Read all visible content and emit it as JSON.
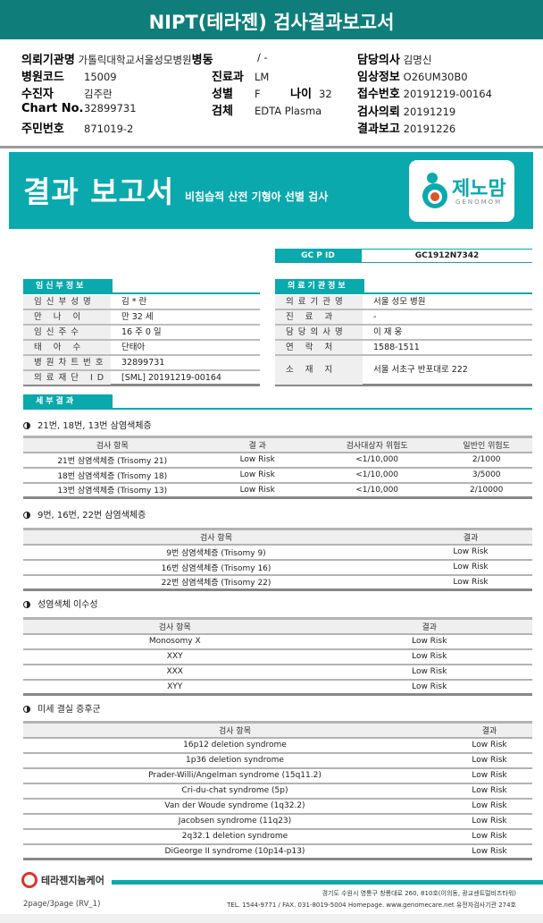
{
  "title": "NIPT(테라젠) 검사결과보고서",
  "header": {
    "institution": {
      "label": "의뢰기관명",
      "value": "가톨릭대학교서울성모병원",
      "ward_label": "병동",
      "ward_value": "/ -"
    },
    "doctor": {
      "label": "담당의사",
      "value": "김명신"
    },
    "hospital_code": {
      "label": "병원코드",
      "value": "15009"
    },
    "department": {
      "label": "진료과",
      "value": "LM"
    },
    "clinical": {
      "label": "임상정보",
      "value": "O26UM30B0"
    },
    "patient": {
      "label": "수진자",
      "value": "김주란"
    },
    "sex": {
      "label": "성별",
      "value": "F"
    },
    "age": {
      "label": "나이",
      "value": "32"
    },
    "receipt": {
      "label": "접수번호",
      "value": "20191219-00164"
    },
    "chart": {
      "label": "Chart No.",
      "value": "32899731"
    },
    "specimen": {
      "label": "검체",
      "value": "EDTA Plasma"
    },
    "request": {
      "label": "검사의뢰",
      "value": "20191219"
    },
    "resident": {
      "label": "주민번호",
      "value": "871019-2"
    },
    "report": {
      "label": "결과보고",
      "value": "20191226"
    }
  },
  "banner": {
    "title": "결과 보고서",
    "subtitle": "비침습적 산전 기형아 선별 검사",
    "logo_text": "제노맘",
    "logo_sub": "GENOMOM",
    "color": "#0aa9ad"
  },
  "gcpid": {
    "label": "GC P ID",
    "value": "GC1912N7342"
  },
  "pregnant": {
    "tab": "임신부정보",
    "rows": [
      {
        "k": "임신부성명",
        "v": "김 * 란"
      },
      {
        "k": "만 나 이",
        "v": "만 32 세"
      },
      {
        "k": "임신주수",
        "v": "16 주 0 일"
      },
      {
        "k": "태 아 수",
        "v": "단태아"
      },
      {
        "k": "병원차트번호",
        "v": "32899731"
      },
      {
        "k": "의료재단 ID",
        "v": "[SML] 20191219-00164"
      }
    ]
  },
  "institution_info": {
    "tab": "의료기관정보",
    "rows": [
      {
        "k": "의료기관명",
        "v": "서울 성모 병원"
      },
      {
        "k": "진 료 과",
        "v": "-"
      },
      {
        "k": "담당의사명",
        "v": "이 재 웅"
      },
      {
        "k": "연 락 처",
        "v": "1588-1511"
      },
      {
        "k": "소 재 지",
        "v": "서울 서초구 반포대로 222"
      }
    ]
  },
  "detail_tab": "세부결과",
  "sections": [
    {
      "heading": "21번, 18번, 13번 삼염색체증",
      "headers": [
        "검사 항목",
        "결 과",
        "검사대상자 위험도",
        "일반인 위험도"
      ],
      "rows": [
        [
          "21번 삼염색체증 (Trisomy 21)",
          "Low Risk",
          "<1/10,000",
          "2/1000"
        ],
        [
          "18번 삼염색체증 (Trisomy 18)",
          "Low Risk",
          "<1/10,000",
          "3/5000"
        ],
        [
          "13번 삼염색체증 (Trisomy 13)",
          "Low Risk",
          "<1/10,000",
          "2/10000"
        ]
      ]
    },
    {
      "heading": "9번, 16번, 22번 삼염색체증",
      "headers": [
        "검사 항목",
        "결과"
      ],
      "rows": [
        [
          "9번 삼염색체증 (Trisomy 9)",
          "Low Risk"
        ],
        [
          "16번 삼염색체증 (Trisomy 16)",
          "Low Risk"
        ],
        [
          "22번 삼염색체증 (Trisomy 22)",
          "Low Risk"
        ]
      ]
    },
    {
      "heading": "성염색체 이수성",
      "headers": [
        "검사 항목",
        "결과"
      ],
      "rows": [
        [
          "Monosomy X",
          "Low Risk"
        ],
        [
          "XXY",
          "Low Risk"
        ],
        [
          "XXX",
          "Low Risk"
        ],
        [
          "XYY",
          "Low Risk"
        ]
      ]
    },
    {
      "heading": "미세 결실 증후군",
      "headers": [
        "검사 항목",
        "결과"
      ],
      "rows": [
        [
          "16p12 deletion syndrome",
          "Low Risk"
        ],
        [
          "1p36  deletion syndrome",
          "Low Risk"
        ],
        [
          "Prader-Willi/Angelman syndrome (15q11.2)",
          "Low Risk"
        ],
        [
          "Cri-du-chat syndrome (5p)",
          "Low Risk"
        ],
        [
          "Van der Woude syndrome (1q32.2)",
          "Low Risk"
        ],
        [
          "Jacobsen syndrome (11q23)",
          "Low Risk"
        ],
        [
          "2q32.1 deletion syndrome",
          "Low Risk"
        ],
        [
          "DiGeorge II syndrome (10p14-p13)",
          "Low Risk"
        ]
      ]
    }
  ],
  "footer": {
    "company": "테라젠지놈케어",
    "page": "2page/3page (RV_1)",
    "address": "경기도 수원시 영통구 창룡대로 260, 810호(이의동, 광교센트럴비즈타워)",
    "contact": "TEL. 1544-9771 / FAX. 031-8019-5004 Homepage. www.genomecare.net 유전자검사기관 274호"
  }
}
